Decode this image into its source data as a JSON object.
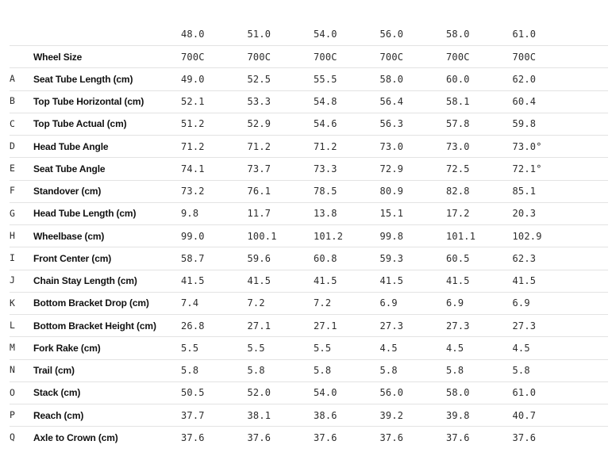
{
  "colors": {
    "background": "#ffffff",
    "label_text": "#111111",
    "value_text": "#2c2c2c",
    "divider": "#e3e3e3"
  },
  "chart_data": {
    "type": "table",
    "title": "",
    "description": "Bicycle frame geometry table by frame size",
    "columns": [
      "48.0",
      "51.0",
      "54.0",
      "56.0",
      "58.0",
      "61.0"
    ],
    "rows": [
      {
        "letter": "",
        "label": "Wheel Size",
        "values": [
          "700C",
          "700C",
          "700C",
          "700C",
          "700C",
          "700C"
        ]
      },
      {
        "letter": "A",
        "label": "Seat Tube Length (cm)",
        "values": [
          "49.0",
          "52.5",
          "55.5",
          "58.0",
          "60.0",
          "62.0"
        ]
      },
      {
        "letter": "B",
        "label": "Top Tube Horizontal (cm)",
        "values": [
          "52.1",
          "53.3",
          "54.8",
          "56.4",
          "58.1",
          "60.4"
        ]
      },
      {
        "letter": "C",
        "label": "Top Tube Actual (cm)",
        "values": [
          "51.2",
          "52.9",
          "54.6",
          "56.3",
          "57.8",
          "59.8"
        ]
      },
      {
        "letter": "D",
        "label": "Head Tube Angle",
        "values": [
          "71.2",
          "71.2",
          "71.2",
          "73.0",
          "73.0",
          "73.0°"
        ]
      },
      {
        "letter": "E",
        "label": "Seat Tube Angle",
        "values": [
          "74.1",
          "73.7",
          "73.3",
          "72.9",
          "72.5",
          "72.1°"
        ]
      },
      {
        "letter": "F",
        "label": "Standover (cm)",
        "values": [
          "73.2",
          "76.1",
          "78.5",
          "80.9",
          "82.8",
          "85.1"
        ]
      },
      {
        "letter": "G",
        "label": "Head Tube Length (cm)",
        "values": [
          "9.8",
          "11.7",
          "13.8",
          "15.1",
          "17.2",
          "20.3"
        ]
      },
      {
        "letter": "H",
        "label": "Wheelbase (cm)",
        "values": [
          "99.0",
          "100.1",
          "101.2",
          "99.8",
          "101.1",
          "102.9"
        ]
      },
      {
        "letter": "I",
        "label": "Front Center (cm)",
        "values": [
          "58.7",
          "59.6",
          "60.8",
          "59.3",
          "60.5",
          "62.3"
        ]
      },
      {
        "letter": "J",
        "label": "Chain Stay Length (cm)",
        "values": [
          "41.5",
          "41.5",
          "41.5",
          "41.5",
          "41.5",
          "41.5"
        ]
      },
      {
        "letter": "K",
        "label": "Bottom Bracket Drop (cm)",
        "values": [
          "7.4",
          "7.2",
          "7.2",
          "6.9",
          "6.9",
          "6.9"
        ]
      },
      {
        "letter": "L",
        "label": "Bottom Bracket Height (cm)",
        "values": [
          "26.8",
          "27.1",
          "27.1",
          "27.3",
          "27.3",
          "27.3"
        ]
      },
      {
        "letter": "M",
        "label": "Fork Rake (cm)",
        "values": [
          "5.5",
          "5.5",
          "5.5",
          "4.5",
          "4.5",
          "4.5"
        ]
      },
      {
        "letter": "N",
        "label": "Trail (cm)",
        "values": [
          "5.8",
          "5.8",
          "5.8",
          "5.8",
          "5.8",
          "5.8"
        ]
      },
      {
        "letter": "O",
        "label": "Stack (cm)",
        "values": [
          "50.5",
          "52.0",
          "54.0",
          "56.0",
          "58.0",
          "61.0"
        ]
      },
      {
        "letter": "P",
        "label": "Reach (cm)",
        "values": [
          "37.7",
          "38.1",
          "38.6",
          "39.2",
          "39.8",
          "40.7"
        ]
      },
      {
        "letter": "Q",
        "label": "Axle to Crown (cm)",
        "values": [
          "37.6",
          "37.6",
          "37.6",
          "37.6",
          "37.6",
          "37.6"
        ]
      }
    ]
  }
}
